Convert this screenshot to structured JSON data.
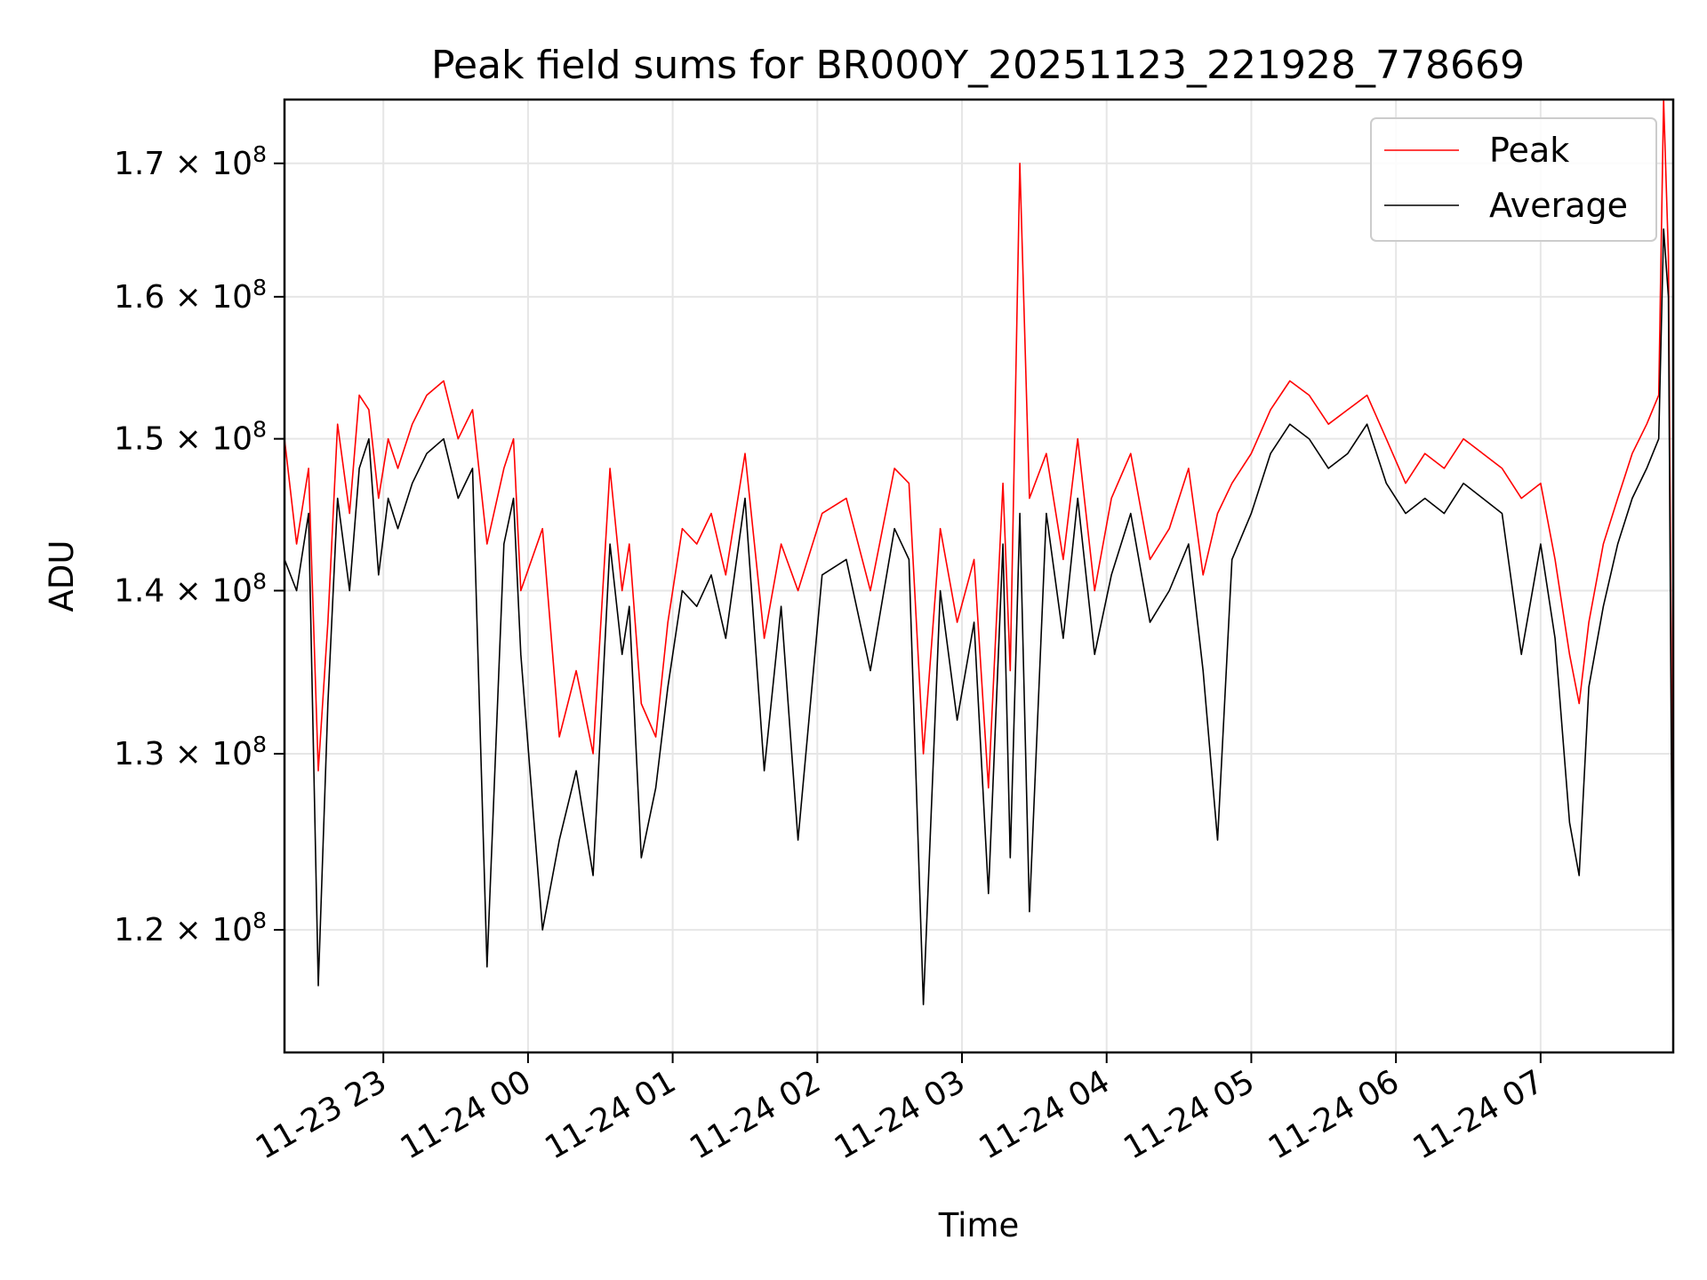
{
  "chart_data": {
    "type": "line",
    "title": "Peak field sums for BR000Y_20251123_221928_778669",
    "xlabel": "Time",
    "ylabel": "ADU",
    "y_scale": "log",
    "xlim": [
      "2025-11-23 22:19:28",
      "2025-11-24 07:55:00"
    ],
    "ylim": [
      113500000,
      175000000
    ],
    "grid": true,
    "legend_position": "top-right",
    "x_ticks": [
      {
        "value": "2025-11-23 23:00",
        "label": "11-23 23"
      },
      {
        "value": "2025-11-24 00:00",
        "label": "11-24 00"
      },
      {
        "value": "2025-11-24 01:00",
        "label": "11-24 01"
      },
      {
        "value": "2025-11-24 02:00",
        "label": "11-24 02"
      },
      {
        "value": "2025-11-24 03:00",
        "label": "11-24 03"
      },
      {
        "value": "2025-11-24 04:00",
        "label": "11-24 04"
      },
      {
        "value": "2025-11-24 05:00",
        "label": "11-24 05"
      },
      {
        "value": "2025-11-24 06:00",
        "label": "11-24 06"
      },
      {
        "value": "2025-11-24 07:00",
        "label": "11-24 07"
      }
    ],
    "y_ticks": [
      {
        "value": 120000000,
        "mantissa": "1.2",
        "exponent": "8"
      },
      {
        "value": 130000000,
        "mantissa": "1.3",
        "exponent": "8"
      },
      {
        "value": 140000000,
        "mantissa": "1.4",
        "exponent": "8"
      },
      {
        "value": 150000000,
        "mantissa": "1.5",
        "exponent": "8"
      },
      {
        "value": 160000000,
        "mantissa": "1.6",
        "exponent": "8"
      },
      {
        "value": 170000000,
        "mantissa": "1.7",
        "exponent": "8"
      }
    ],
    "series": [
      {
        "name": "Peak",
        "color": "#ff0000",
        "x": [
          "2025-11-23 22:19",
          "2025-11-23 22:24",
          "2025-11-23 22:29",
          "2025-11-23 22:33",
          "2025-11-23 22:37",
          "2025-11-23 22:41",
          "2025-11-23 22:46",
          "2025-11-23 22:50",
          "2025-11-23 22:54",
          "2025-11-23 22:58",
          "2025-11-23 23:02",
          "2025-11-23 23:06",
          "2025-11-23 23:12",
          "2025-11-23 23:18",
          "2025-11-23 23:25",
          "2025-11-23 23:31",
          "2025-11-23 23:37",
          "2025-11-23 23:43",
          "2025-11-23 23:50",
          "2025-11-23 23:54",
          "2025-11-23 23:57",
          "2025-11-24 00:06",
          "2025-11-24 00:13",
          "2025-11-24 00:20",
          "2025-11-24 00:27",
          "2025-11-24 00:34",
          "2025-11-24 00:39",
          "2025-11-24 00:42",
          "2025-11-24 00:47",
          "2025-11-24 00:53",
          "2025-11-24 00:58",
          "2025-11-24 01:04",
          "2025-11-24 01:10",
          "2025-11-24 01:16",
          "2025-11-24 01:22",
          "2025-11-24 01:30",
          "2025-11-24 01:38",
          "2025-11-24 01:45",
          "2025-11-24 01:52",
          "2025-11-24 02:02",
          "2025-11-24 02:12",
          "2025-11-24 02:22",
          "2025-11-24 02:32",
          "2025-11-24 02:38",
          "2025-11-24 02:44",
          "2025-11-24 02:51",
          "2025-11-24 02:58",
          "2025-11-24 03:05",
          "2025-11-24 03:11",
          "2025-11-24 03:17",
          "2025-11-24 03:20",
          "2025-11-24 03:24",
          "2025-11-24 03:28",
          "2025-11-24 03:35",
          "2025-11-24 03:42",
          "2025-11-24 03:48",
          "2025-11-24 03:55",
          "2025-11-24 04:02",
          "2025-11-24 04:10",
          "2025-11-24 04:18",
          "2025-11-24 04:26",
          "2025-11-24 04:34",
          "2025-11-24 04:40",
          "2025-11-24 04:46",
          "2025-11-24 04:52",
          "2025-11-24 05:00",
          "2025-11-24 05:08",
          "2025-11-24 05:16",
          "2025-11-24 05:24",
          "2025-11-24 05:32",
          "2025-11-24 05:40",
          "2025-11-24 05:48",
          "2025-11-24 05:56",
          "2025-11-24 06:04",
          "2025-11-24 06:12",
          "2025-11-24 06:20",
          "2025-11-24 06:28",
          "2025-11-24 06:36",
          "2025-11-24 06:44",
          "2025-11-24 06:52",
          "2025-11-24 07:00",
          "2025-11-24 07:06",
          "2025-11-24 07:12",
          "2025-11-24 07:16",
          "2025-11-24 07:20",
          "2025-11-24 07:26",
          "2025-11-24 07:32",
          "2025-11-24 07:38",
          "2025-11-24 07:44",
          "2025-11-24 07:49",
          "2025-11-24 07:51",
          "2025-11-24 07:53",
          "2025-11-24 07:55"
        ],
        "values": [
          150000000,
          143000000,
          148000000,
          129000000,
          138000000,
          151000000,
          145000000,
          153000000,
          152000000,
          146000000,
          150000000,
          148000000,
          151000000,
          153000000,
          154000000,
          150000000,
          152000000,
          143000000,
          148000000,
          150000000,
          140000000,
          144000000,
          131000000,
          135000000,
          130000000,
          148000000,
          140000000,
          143000000,
          133000000,
          131000000,
          138000000,
          144000000,
          143000000,
          145000000,
          141000000,
          149000000,
          137000000,
          143000000,
          140000000,
          145000000,
          146000000,
          140000000,
          148000000,
          147000000,
          130000000,
          144000000,
          138000000,
          142000000,
          128000000,
          147000000,
          135000000,
          170000000,
          146000000,
          149000000,
          142000000,
          150000000,
          140000000,
          146000000,
          149000000,
          142000000,
          144000000,
          148000000,
          141000000,
          145000000,
          147000000,
          149000000,
          152000000,
          154000000,
          153000000,
          151000000,
          152000000,
          153000000,
          150000000,
          147000000,
          149000000,
          148000000,
          150000000,
          149000000,
          148000000,
          146000000,
          147000000,
          142000000,
          136000000,
          133000000,
          138000000,
          143000000,
          146000000,
          149000000,
          151000000,
          153000000,
          175000000,
          163000000,
          120000000
        ]
      },
      {
        "name": "Average",
        "color": "#000000",
        "x": [
          "2025-11-23 22:19",
          "2025-11-23 22:24",
          "2025-11-23 22:29",
          "2025-11-23 22:33",
          "2025-11-23 22:37",
          "2025-11-23 22:41",
          "2025-11-23 22:46",
          "2025-11-23 22:50",
          "2025-11-23 22:54",
          "2025-11-23 22:58",
          "2025-11-23 23:02",
          "2025-11-23 23:06",
          "2025-11-23 23:12",
          "2025-11-23 23:18",
          "2025-11-23 23:25",
          "2025-11-23 23:31",
          "2025-11-23 23:37",
          "2025-11-23 23:43",
          "2025-11-23 23:50",
          "2025-11-23 23:54",
          "2025-11-23 23:57",
          "2025-11-24 00:06",
          "2025-11-24 00:13",
          "2025-11-24 00:20",
          "2025-11-24 00:27",
          "2025-11-24 00:34",
          "2025-11-24 00:39",
          "2025-11-24 00:42",
          "2025-11-24 00:47",
          "2025-11-24 00:53",
          "2025-11-24 00:58",
          "2025-11-24 01:04",
          "2025-11-24 01:10",
          "2025-11-24 01:16",
          "2025-11-24 01:22",
          "2025-11-24 01:30",
          "2025-11-24 01:38",
          "2025-11-24 01:45",
          "2025-11-24 01:52",
          "2025-11-24 02:02",
          "2025-11-24 02:12",
          "2025-11-24 02:22",
          "2025-11-24 02:32",
          "2025-11-24 02:38",
          "2025-11-24 02:44",
          "2025-11-24 02:51",
          "2025-11-24 02:58",
          "2025-11-24 03:05",
          "2025-11-24 03:11",
          "2025-11-24 03:17",
          "2025-11-24 03:20",
          "2025-11-24 03:24",
          "2025-11-24 03:28",
          "2025-11-24 03:35",
          "2025-11-24 03:42",
          "2025-11-24 03:48",
          "2025-11-24 03:55",
          "2025-11-24 04:02",
          "2025-11-24 04:10",
          "2025-11-24 04:18",
          "2025-11-24 04:26",
          "2025-11-24 04:34",
          "2025-11-24 04:40",
          "2025-11-24 04:46",
          "2025-11-24 04:52",
          "2025-11-24 05:00",
          "2025-11-24 05:08",
          "2025-11-24 05:16",
          "2025-11-24 05:24",
          "2025-11-24 05:32",
          "2025-11-24 05:40",
          "2025-11-24 05:48",
          "2025-11-24 05:56",
          "2025-11-24 06:04",
          "2025-11-24 06:12",
          "2025-11-24 06:20",
          "2025-11-24 06:28",
          "2025-11-24 06:36",
          "2025-11-24 06:44",
          "2025-11-24 06:52",
          "2025-11-24 07:00",
          "2025-11-24 07:06",
          "2025-11-24 07:12",
          "2025-11-24 07:16",
          "2025-11-24 07:20",
          "2025-11-24 07:26",
          "2025-11-24 07:32",
          "2025-11-24 07:38",
          "2025-11-24 07:44",
          "2025-11-24 07:49",
          "2025-11-24 07:51",
          "2025-11-24 07:53",
          "2025-11-24 07:55"
        ],
        "values": [
          142000000,
          140000000,
          145000000,
          117000000,
          133000000,
          146000000,
          140000000,
          148000000,
          150000000,
          141000000,
          146000000,
          144000000,
          147000000,
          149000000,
          150000000,
          146000000,
          148000000,
          118000000,
          143000000,
          146000000,
          136000000,
          120000000,
          125000000,
          129000000,
          123000000,
          143000000,
          136000000,
          139000000,
          124000000,
          128000000,
          134000000,
          140000000,
          139000000,
          141000000,
          137000000,
          146000000,
          129000000,
          139000000,
          125000000,
          141000000,
          142000000,
          135000000,
          144000000,
          142000000,
          116000000,
          140000000,
          132000000,
          138000000,
          122000000,
          143000000,
          124000000,
          145000000,
          121000000,
          145000000,
          137000000,
          146000000,
          136000000,
          141000000,
          145000000,
          138000000,
          140000000,
          143000000,
          135000000,
          125000000,
          142000000,
          145000000,
          149000000,
          151000000,
          150000000,
          148000000,
          149000000,
          151000000,
          147000000,
          145000000,
          146000000,
          145000000,
          147000000,
          146000000,
          145000000,
          136000000,
          143000000,
          137000000,
          126000000,
          123000000,
          134000000,
          139000000,
          143000000,
          146000000,
          148000000,
          150000000,
          165000000,
          160000000,
          114000000
        ]
      }
    ]
  }
}
